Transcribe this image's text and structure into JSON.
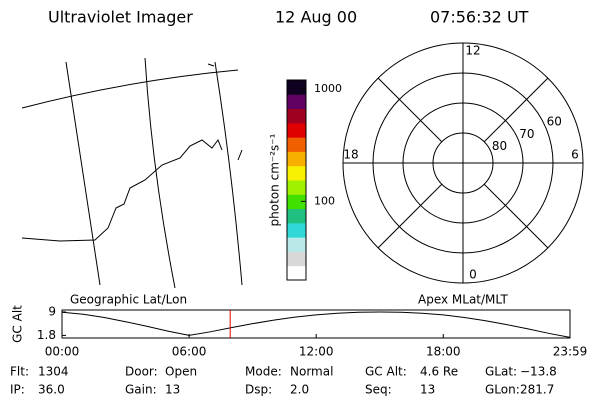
{
  "header": {
    "title": "Ultraviolet Imager",
    "date": "12 Aug 00",
    "time": "07:56:32 UT"
  },
  "chart_data": [
    {
      "type": "colorbar",
      "label": "photon cm⁻²s⁻¹",
      "log": true,
      "ylim": [
        20,
        1200
      ],
      "yticks": [
        100,
        1000
      ],
      "colors": [
        "#ffffff",
        "#d8d8d8",
        "#b8e8e8",
        "#30d8d8",
        "#20c080",
        "#40e000",
        "#a0f000",
        "#f8f000",
        "#f8b000",
        "#f06000",
        "#e00000",
        "#a00020",
        "#600060",
        "#100020"
      ]
    },
    {
      "type": "polar",
      "rlim": [
        90,
        50
      ],
      "rticks": [
        80,
        70,
        60
      ],
      "mlt_ticks": [
        0,
        6,
        12,
        18
      ]
    },
    {
      "type": "line",
      "ylabel": "GC Alt",
      "left_label": "Geographic Lat/Lon",
      "right_label": "Apex MLat/MLT",
      "xlim": [
        0,
        23.983
      ],
      "ylim": [
        1.0,
        9.6
      ],
      "xticks": [
        {
          "value": 0,
          "label": "00:00"
        },
        {
          "value": 6,
          "label": "06:00"
        },
        {
          "value": 12,
          "label": "12:00"
        },
        {
          "value": 18,
          "label": "18:00"
        },
        {
          "value": 23.983,
          "label": "23:59"
        }
      ],
      "yticks": [
        1.8,
        9.0
      ],
      "x": [
        0,
        1,
        2,
        3,
        4,
        5,
        6,
        7,
        8,
        9,
        10,
        11,
        12,
        13,
        14,
        15,
        16,
        17,
        18,
        19,
        20,
        21,
        22,
        23,
        23.983
      ],
      "values": [
        8.9,
        8.3,
        7.3,
        6.0,
        4.6,
        3.1,
        1.8,
        2.9,
        4.2,
        5.4,
        6.5,
        7.4,
        8.1,
        8.6,
        8.9,
        9.0,
        8.9,
        8.6,
        8.1,
        7.3,
        6.3,
        5.1,
        3.8,
        2.4,
        1.2
      ],
      "color": "#000000",
      "marker": 7.94,
      "marker_color": "#e00000"
    }
  ],
  "footer": [
    [
      [
        "Flt:",
        "1304"
      ],
      [
        "IP:",
        "36.0"
      ]
    ],
    [
      [
        "Door:",
        "Open"
      ],
      [
        "Gain:",
        "13"
      ]
    ],
    [
      [
        "Mode:",
        "Normal"
      ],
      [
        "Dsp:",
        "2.0"
      ]
    ],
    [
      [
        "GC Alt:",
        "4.6 Re"
      ],
      [
        "Seq:",
        "13"
      ]
    ],
    [
      [
        "GLat:",
        "−13.8"
      ],
      [
        "GLon:",
        "281.7"
      ]
    ]
  ]
}
